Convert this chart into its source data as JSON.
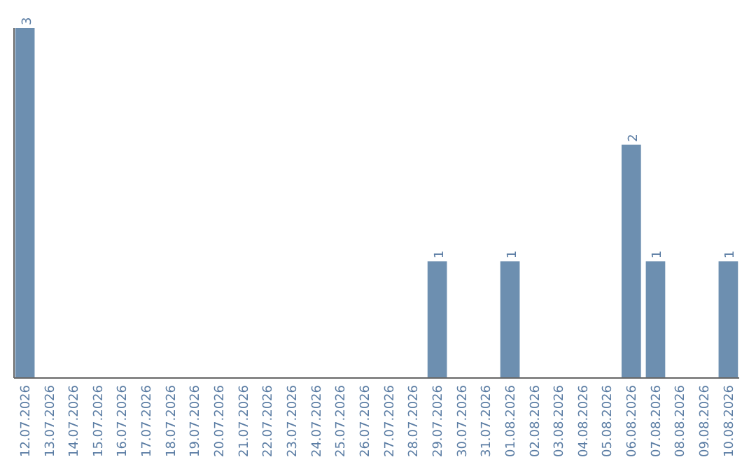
{
  "chart_data": {
    "type": "bar",
    "categories": [
      "12.07.2026",
      "13.07.2026",
      "14.07.2026",
      "15.07.2026",
      "16.07.2026",
      "17.07.2026",
      "18.07.2026",
      "19.07.2026",
      "20.07.2026",
      "21.07.2026",
      "22.07.2026",
      "23.07.2026",
      "24.07.2026",
      "25.07.2026",
      "26.07.2026",
      "27.07.2026",
      "28.07.2026",
      "29.07.2026",
      "30.07.2026",
      "31.07.2026",
      "01.08.2026",
      "02.08.2026",
      "03.08.2026",
      "04.08.2026",
      "05.08.2026",
      "06.08.2026",
      "07.08.2026",
      "08.08.2026",
      "09.08.2026",
      "10.08.2026"
    ],
    "values": [
      3,
      0,
      0,
      0,
      0,
      0,
      0,
      0,
      0,
      0,
      0,
      0,
      0,
      0,
      0,
      0,
      0,
      1,
      0,
      0,
      1,
      0,
      0,
      0,
      0,
      2,
      1,
      0,
      0,
      1
    ],
    "value_labels": [
      "3",
      null,
      null,
      null,
      null,
      null,
      null,
      null,
      null,
      null,
      null,
      null,
      null,
      null,
      null,
      null,
      null,
      "1",
      null,
      null,
      "1",
      null,
      null,
      null,
      null,
      "2",
      "1",
      null,
      null,
      "1"
    ],
    "color": "#6d8fb0",
    "tick_labels": "x",
    "grid": false
  }
}
